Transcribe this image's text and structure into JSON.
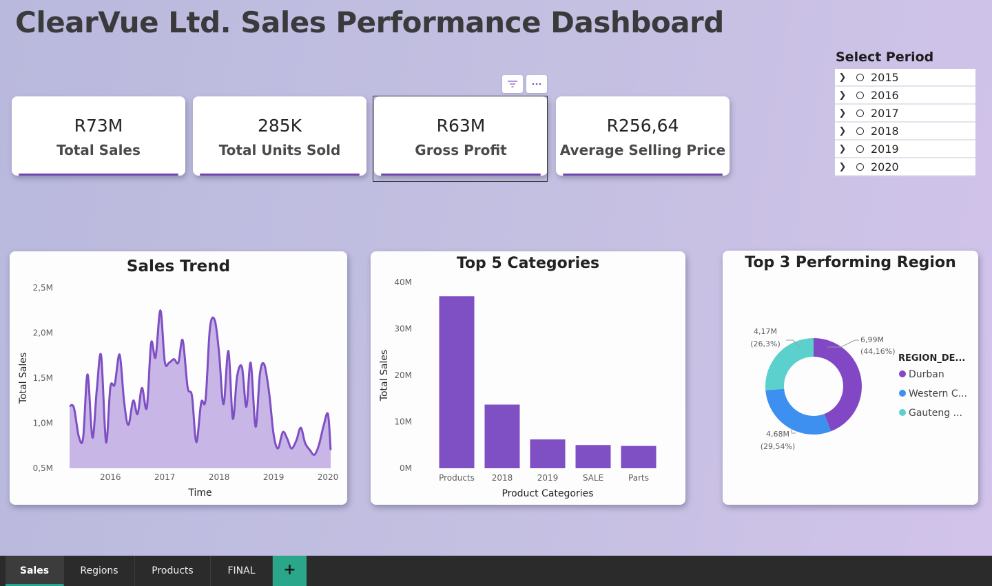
{
  "title": "ClearVue Ltd. Sales Performance Dashboard",
  "slicer": {
    "title": "Select Period",
    "items": [
      "2015",
      "2016",
      "2017",
      "2018",
      "2019",
      "2020"
    ]
  },
  "kpis": [
    {
      "value": "R73M",
      "label": "Total Sales"
    },
    {
      "value": "285K",
      "label": "Total Units Sold"
    },
    {
      "value": "R63M",
      "label": "Gross Profit"
    },
    {
      "value": "R256,64",
      "label": "Average Selling Price"
    }
  ],
  "header_icons": [
    "filter-icon",
    "more-options-icon"
  ],
  "colors": {
    "accent": "#7f4fc4",
    "line": "#7f4fc4",
    "area": "#c8b6e6",
    "durban": "#8247c5",
    "western_cape": "#3d8ff0",
    "gauteng": "#5cd0cc"
  },
  "tabs": [
    "Sales",
    "Regions",
    "Products",
    "FINAL"
  ],
  "add_tab_label": "+",
  "chart_data": [
    {
      "type": "area",
      "title": "Sales Trend",
      "xlabel": "Time",
      "ylabel": "Total Sales",
      "xticks": [
        "2016",
        "2017",
        "2018",
        "2019",
        "2020"
      ],
      "yticks": [
        "0,5M",
        "1,0M",
        "1,5M",
        "2,0M",
        "2,5M"
      ],
      "ylim": [
        0.5,
        2.5
      ],
      "xlim": [
        2015.25,
        2020.05
      ],
      "x": [
        2015.25,
        2015.33,
        2015.42,
        2015.5,
        2015.58,
        2015.67,
        2015.75,
        2015.83,
        2015.92,
        2016.0,
        2016.08,
        2016.17,
        2016.25,
        2016.33,
        2016.42,
        2016.5,
        2016.58,
        2016.67,
        2016.75,
        2016.83,
        2016.92,
        2017.0,
        2017.08,
        2017.17,
        2017.25,
        2017.33,
        2017.42,
        2017.5,
        2017.58,
        2017.67,
        2017.75,
        2017.83,
        2017.92,
        2018.0,
        2018.08,
        2018.17,
        2018.25,
        2018.33,
        2018.42,
        2018.5,
        2018.58,
        2018.67,
        2018.75,
        2018.83,
        2018.92,
        2019.0,
        2019.08,
        2019.17,
        2019.25,
        2019.33,
        2019.42,
        2019.5,
        2019.58,
        2019.67,
        2019.75,
        2019.83,
        2019.92,
        2020.0,
        2020.05
      ],
      "values": [
        1.19,
        1.17,
        0.85,
        0.84,
        1.54,
        0.84,
        1.37,
        1.75,
        0.79,
        1.4,
        1.43,
        1.76,
        1.25,
        0.98,
        1.25,
        1.1,
        1.39,
        1.17,
        1.89,
        1.73,
        2.25,
        1.68,
        1.67,
        1.71,
        1.67,
        1.92,
        1.4,
        1.3,
        0.79,
        1.23,
        1.26,
        2.05,
        2.14,
        1.77,
        1.21,
        1.8,
        1.05,
        1.52,
        1.62,
        1.18,
        1.67,
        0.96,
        1.55,
        1.65,
        1.33,
        0.88,
        0.72,
        0.9,
        0.83,
        0.72,
        0.81,
        0.95,
        0.78,
        0.7,
        0.65,
        0.75,
        0.97,
        1.1,
        0.7
      ]
    },
    {
      "type": "bar",
      "title": "Top 5 Categories",
      "xlabel": "Product Categories",
      "ylabel": "Total Sales",
      "categories": [
        "Products",
        "2018",
        "2019",
        "SALE",
        "Parts"
      ],
      "values": [
        37.0,
        13.7,
        6.2,
        5.0,
        4.8
      ],
      "yticks": [
        "0M",
        "10M",
        "20M",
        "30M",
        "40M"
      ],
      "ylim": [
        0,
        40
      ]
    },
    {
      "type": "pie",
      "title": "Top 3 Performing Region",
      "legend_title": "REGION_DE...",
      "slices": [
        {
          "legend": "Durban",
          "value": 6.99,
          "value_label": "6,99M",
          "pct_label": "(44,16%)"
        },
        {
          "legend": "Western C...",
          "value": 4.68,
          "value_label": "4,68M",
          "pct_label": "(29,54%)"
        },
        {
          "legend": "Gauteng ...",
          "value": 4.17,
          "value_label": "4,17M",
          "pct_label": "(26,3%)"
        }
      ]
    }
  ]
}
